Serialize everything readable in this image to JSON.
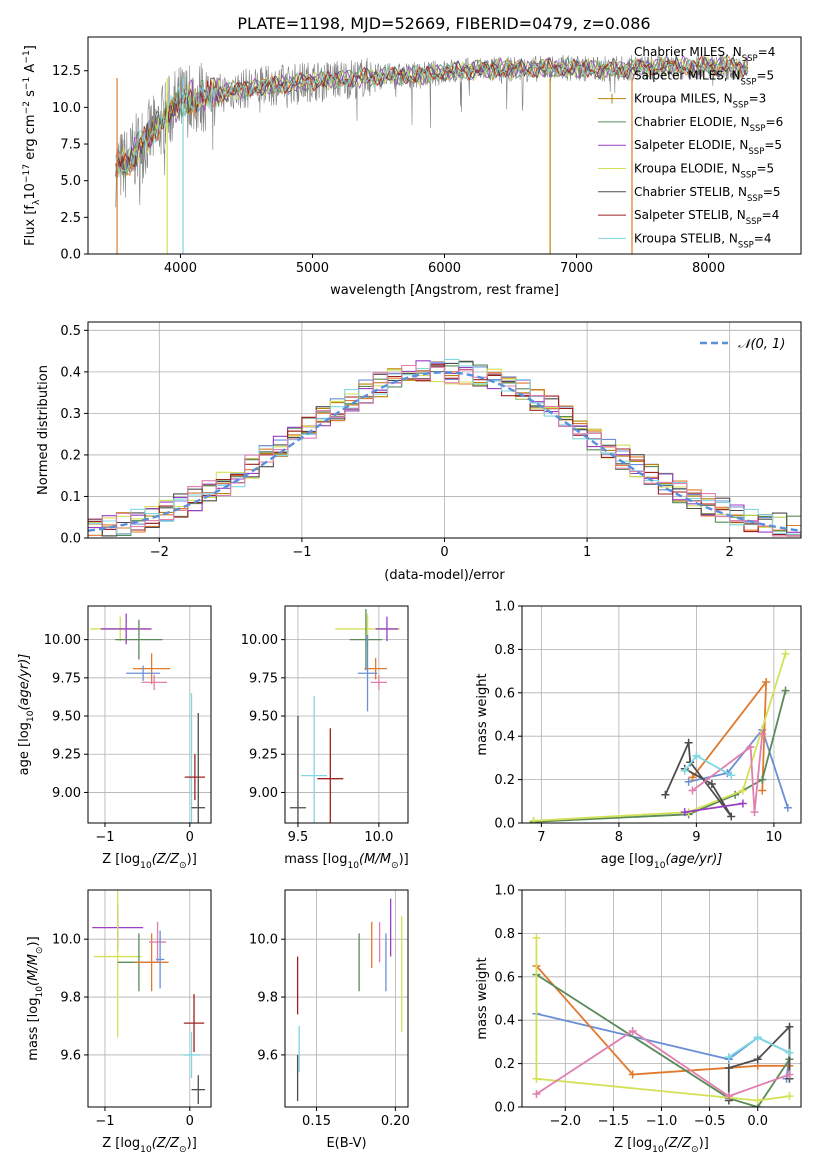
{
  "title": "PLATE=1198, MJD=52669, FIBERID=0479, z=0.086",
  "colors": {
    "chabrier_miles": "#6b8fd6",
    "salpeter_miles": "#e07a2e",
    "kroupa_miles": "#b8860b",
    "chabrier_elodie": "#5a8a5a",
    "salpeter_elodie": "#9b3fc4",
    "kroupa_elodie": "#d4e157",
    "chabrier_stelib": "#4d4d4d",
    "salpeter_stelib": "#a02020",
    "kroupa_stelib": "#7fd8e0",
    "pink": "#e07fb0",
    "gaussian": "#5a8fdc",
    "data_spectrum": "#808080"
  },
  "chart_data": [
    {
      "id": "spectrum",
      "type": "line",
      "title": "PLATE=1198, MJD=52669, FIBERID=0479, z=0.086",
      "xlabel": "wavelength [Angstrom, rest frame]",
      "ylabel_parts": [
        "Flux [f",
        "λ",
        "10",
        "−17",
        " erg cm",
        "−2",
        " s",
        "−1",
        " A",
        "−1",
        "]"
      ],
      "xlim": [
        3300,
        8700
      ],
      "ylim": [
        0,
        14.8
      ],
      "xticks": [
        4000,
        5000,
        6000,
        7000,
        8000
      ],
      "xtick_labels": [
        "4000",
        "5000",
        "6000",
        "7000",
        "8000"
      ],
      "yticks": [
        0,
        2.5,
        5,
        7.5,
        10,
        12.5
      ],
      "ytick_labels": [
        "0.0",
        "2.5",
        "5.0",
        "7.5",
        "10.0",
        "12.5"
      ],
      "continuum_x": [
        3510,
        3600,
        3700,
        3800,
        3900,
        4000,
        4200,
        4500,
        4800,
        5000,
        5200,
        5500,
        5800,
        6000,
        6300,
        6600,
        6900,
        7200,
        7500,
        7800,
        8000,
        8300
      ],
      "continuum_y": [
        5.8,
        6.2,
        7.5,
        8.3,
        9.6,
        10.4,
        10.8,
        11.3,
        11.6,
        11.8,
        11.9,
        12.1,
        12.2,
        12.4,
        12.6,
        12.6,
        12.7,
        12.6,
        12.7,
        12.8,
        12.8,
        12.7
      ],
      "spike_lines": [
        {
          "x": 3520,
          "color": "#e07a2e"
        },
        {
          "x": 3900,
          "color": "#d4e157"
        },
        {
          "x": 4020,
          "color": "#7fd8e0"
        },
        {
          "x": 6800,
          "color": "#b8860b"
        },
        {
          "x": 7420,
          "color": "#e07a2e"
        }
      ],
      "legend": [
        {
          "label": "Chabrier MILES, N",
          "sub": "SSP",
          "tail": "=4",
          "color": "#6b8fd6"
        },
        {
          "label": "Salpeter MILES, N",
          "sub": "SSP",
          "tail": "=5",
          "color": "#e07a2e"
        },
        {
          "label": "Kroupa MILES, N",
          "sub": "SSP",
          "tail": "=3",
          "color": "#b8860b"
        },
        {
          "label": "Chabrier ELODIE, N",
          "sub": "SSP",
          "tail": "=6",
          "color": "#5a8a5a"
        },
        {
          "label": "Salpeter ELODIE, N",
          "sub": "SSP",
          "tail": "=5",
          "color": "#9b3fc4"
        },
        {
          "label": "Kroupa ELODIE, N",
          "sub": "SSP",
          "tail": "=5",
          "color": "#d4e157"
        },
        {
          "label": "Chabrier STELIB, N",
          "sub": "SSP",
          "tail": "=5",
          "color": "#4d4d4d"
        },
        {
          "label": "Salpeter STELIB, N",
          "sub": "SSP",
          "tail": "=4",
          "color": "#a02020"
        },
        {
          "label": "Kroupa STELIB, N",
          "sub": "SSP",
          "tail": "=4",
          "color": "#7fd8e0"
        }
      ]
    },
    {
      "id": "residuals",
      "type": "histogram",
      "xlabel": "(data-model)/error",
      "ylabel": "Normed distribution",
      "xlim": [
        -2.5,
        2.5
      ],
      "ylim": [
        0,
        0.52
      ],
      "xticks": [
        -2,
        -1,
        0,
        1,
        2
      ],
      "xtick_labels": [
        "−2",
        "−1",
        "0",
        "1",
        "2"
      ],
      "yticks": [
        0,
        0.1,
        0.2,
        0.3,
        0.4,
        0.5
      ],
      "ytick_labels": [
        "0.0",
        "0.1",
        "0.2",
        "0.3",
        "0.4",
        "0.5"
      ],
      "bin_width": 0.1,
      "bin_start": -2.5,
      "gaussian_label": "𝒩(0, 1)",
      "base_values": [
        0.025,
        0.03,
        0.036,
        0.044,
        0.054,
        0.066,
        0.079,
        0.094,
        0.111,
        0.13,
        0.15,
        0.171,
        0.194,
        0.218,
        0.242,
        0.266,
        0.29,
        0.312,
        0.333,
        0.352,
        0.368,
        0.381,
        0.391,
        0.397,
        0.4,
        0.4,
        0.397,
        0.391,
        0.381,
        0.368,
        0.352,
        0.333,
        0.312,
        0.29,
        0.266,
        0.242,
        0.218,
        0.194,
        0.171,
        0.15,
        0.13,
        0.111,
        0.094,
        0.079,
        0.066,
        0.054,
        0.044,
        0.036,
        0.03,
        0.025
      ],
      "series_colors": [
        "#6b8fd6",
        "#e07a2e",
        "#b8860b",
        "#5a8a5a",
        "#9b3fc4",
        "#d4e157",
        "#4d4d4d",
        "#a02020",
        "#7fd8e0",
        "#e07fb0"
      ]
    },
    {
      "id": "age_vs_Z",
      "type": "errorbar",
      "xlabel_parts": [
        "Z [log",
        "10",
        "(Z/Z",
        "⊙",
        ")]"
      ],
      "ylabel_parts": [
        "age  [log",
        "10",
        "(age/yr)]"
      ],
      "xlim": [
        -1.2,
        0.25
      ],
      "ylim": [
        8.8,
        10.22
      ],
      "xticks": [
        -1,
        0
      ],
      "xtick_labels": [
        "−1",
        "0"
      ],
      "yticks": [
        9.0,
        9.25,
        9.5,
        9.75,
        10.0
      ],
      "ytick_labels": [
        "9.00",
        "9.25",
        "9.50",
        "9.75",
        "10.00"
      ],
      "points": [
        {
          "x": -0.82,
          "y": 10.07,
          "xerr": 0.35,
          "yerr": 0.08,
          "color": "#d4e157"
        },
        {
          "x": -0.75,
          "y": 10.07,
          "xerr": 0.3,
          "yerr": 0.1,
          "color": "#9b3fc4"
        },
        {
          "x": -0.6,
          "y": 10.0,
          "xerr": 0.28,
          "yerr": 0.13,
          "color": "#5a8a5a"
        },
        {
          "x": -0.45,
          "y": 9.81,
          "xerr": 0.22,
          "yerr": 0.1,
          "color": "#e07a2e"
        },
        {
          "x": -0.55,
          "y": 9.78,
          "xerr": 0.2,
          "yerr": 0.05,
          "color": "#6b8fd6"
        },
        {
          "x": -0.42,
          "y": 9.72,
          "xerr": 0.15,
          "yerr": 0.05,
          "color": "#e07fb0"
        },
        {
          "x": 0.02,
          "y": 9.1,
          "xerr": 0.01,
          "yerr": 0.55,
          "color": "#7fd8e0"
        },
        {
          "x": 0.06,
          "y": 9.1,
          "xerr": 0.12,
          "yerr": 0.15,
          "color": "#a02020"
        },
        {
          "x": 0.1,
          "y": 8.9,
          "xerr": 0.08,
          "yerr": 0.62,
          "color": "#4d4d4d"
        }
      ]
    },
    {
      "id": "age_vs_mass",
      "type": "errorbar",
      "xlabel_parts": [
        "mass [log",
        "10",
        "(M/M",
        "⊙",
        ")]"
      ],
      "xlim": [
        9.42,
        10.18
      ],
      "ylim": [
        8.8,
        10.22
      ],
      "xticks": [
        9.5,
        10.0
      ],
      "xtick_labels": [
        "9.5",
        "10.0"
      ],
      "yticks": [
        9.0,
        9.25,
        9.5,
        9.75,
        10.0
      ],
      "ytick_labels": [
        "9.00",
        "9.25",
        "9.50",
        "9.75",
        "10.00"
      ],
      "points": [
        {
          "x": 9.93,
          "y": 10.07,
          "xerr": 0.2,
          "yerr": 0.1,
          "color": "#d4e157"
        },
        {
          "x": 10.05,
          "y": 10.07,
          "xerr": 0.07,
          "yerr": 0.08,
          "color": "#9b3fc4"
        },
        {
          "x": 9.92,
          "y": 10.0,
          "xerr": 0.1,
          "yerr": 0.2,
          "color": "#5a8a5a"
        },
        {
          "x": 9.98,
          "y": 9.81,
          "xerr": 0.07,
          "yerr": 0.07,
          "color": "#e07a2e"
        },
        {
          "x": 9.93,
          "y": 9.78,
          "xerr": 0.06,
          "yerr": 0.25,
          "color": "#6b8fd6"
        },
        {
          "x": 10.0,
          "y": 9.72,
          "xerr": 0.05,
          "yerr": 0.05,
          "color": "#e07fb0"
        },
        {
          "x": 9.6,
          "y": 9.11,
          "xerr": 0.08,
          "yerr": 0.52,
          "color": "#7fd8e0"
        },
        {
          "x": 9.7,
          "y": 9.09,
          "xerr": 0.08,
          "yerr": 0.33,
          "color": "#a02020"
        },
        {
          "x": 9.5,
          "y": 8.9,
          "xerr": 0.05,
          "yerr": 0.6,
          "color": "#4d4d4d"
        }
      ]
    },
    {
      "id": "weight_vs_age",
      "type": "line",
      "xlabel_parts": [
        "age  [log",
        "10",
        "(age/yr)]"
      ],
      "ylabel": "mass weight",
      "xlim": [
        6.75,
        10.35
      ],
      "ylim": [
        0,
        1
      ],
      "xticks": [
        7,
        8,
        9,
        10
      ],
      "xtick_labels": [
        "7",
        "8",
        "9",
        "10"
      ],
      "yticks": [
        0,
        0.2,
        0.4,
        0.6,
        0.8,
        1.0
      ],
      "ytick_labels": [
        "0.0",
        "0.2",
        "0.4",
        "0.6",
        "0.8",
        "1.0"
      ],
      "series": [
        {
          "name": "Chabrier MILES",
          "color": "#6b8fd6",
          "x": [
            8.9,
            9.4,
            9.85,
            10.18
          ],
          "y": [
            0.19,
            0.23,
            0.43,
            0.07
          ]
        },
        {
          "name": "Salpeter MILES",
          "color": "#e07a2e",
          "x": [
            8.95,
            9.9,
            9.85
          ],
          "y": [
            0.21,
            0.65,
            0.15
          ]
        },
        {
          "name": "Chabrier ELODIE",
          "color": "#5a8a5a",
          "x": [
            6.9,
            8.9,
            9.5,
            9.85,
            10.15
          ],
          "y": [
            0.005,
            0.04,
            0.13,
            0.2,
            0.61
          ]
        },
        {
          "name": "Kroupa ELODIE",
          "color": "#d4e157",
          "x": [
            6.9,
            8.9,
            9.6,
            10.15
          ],
          "y": [
            0.01,
            0.05,
            0.15,
            0.78
          ]
        },
        {
          "name": "Chabrier STELIB",
          "color": "#4d4d4d",
          "x": [
            8.6,
            8.9,
            8.92,
            9.45,
            9.2,
            8.85
          ],
          "y": [
            0.13,
            0.37,
            0.28,
            0.03,
            0.18,
            0.25
          ]
        },
        {
          "name": "Pink",
          "color": "#e07fb0",
          "x": [
            8.95,
            9.7,
            9.75,
            9.85
          ],
          "y": [
            0.15,
            0.35,
            0.05,
            0.41
          ]
        },
        {
          "name": "Salpeter ELODIE",
          "color": "#9b3fc4",
          "x": [
            8.85,
            9.6
          ],
          "y": [
            0.05,
            0.09
          ]
        },
        {
          "name": "Kroupa STELIB",
          "color": "#7fd8e0",
          "x": [
            8.85,
            9.0,
            9.45
          ],
          "y": [
            0.24,
            0.31,
            0.22
          ]
        }
      ]
    },
    {
      "id": "mass_vs_Z",
      "type": "errorbar",
      "xlabel_parts": [
        "Z [log",
        "10",
        "(Z/Z",
        "⊙",
        ")]"
      ],
      "ylabel_parts": [
        "mass [log",
        "10",
        "(M/M",
        "⊙",
        ")]"
      ],
      "xlim": [
        -1.2,
        0.25
      ],
      "ylim": [
        9.42,
        10.17
      ],
      "xticks": [
        -1,
        0
      ],
      "xtick_labels": [
        "−1",
        "0"
      ],
      "yticks": [
        9.6,
        9.8,
        10.0
      ],
      "ytick_labels": [
        "9.6",
        "9.8",
        "10.0"
      ],
      "points": [
        {
          "x": -0.85,
          "y": 10.04,
          "xerr": 0.3,
          "yerr": 0.08,
          "color": "#9b3fc4"
        },
        {
          "x": -0.85,
          "y": 9.94,
          "xerr": 0.28,
          "yerr": 0.28,
          "color": "#d4e157"
        },
        {
          "x": -0.6,
          "y": 9.92,
          "xerr": 0.25,
          "yerr": 0.1,
          "color": "#5a8a5a"
        },
        {
          "x": -0.45,
          "y": 9.92,
          "xerr": 0.2,
          "yerr": 0.1,
          "color": "#e07a2e"
        },
        {
          "x": -0.38,
          "y": 9.99,
          "xerr": 0.1,
          "yerr": 0.07,
          "color": "#e07fb0"
        },
        {
          "x": -0.35,
          "y": 9.93,
          "xerr": 0.05,
          "yerr": 0.1,
          "color": "#6b8fd6"
        },
        {
          "x": 0.05,
          "y": 9.71,
          "xerr": 0.12,
          "yerr": 0.1,
          "color": "#a02020"
        },
        {
          "x": 0.02,
          "y": 9.6,
          "xerr": 0.1,
          "yerr": 0.08,
          "color": "#7fd8e0"
        },
        {
          "x": 0.1,
          "y": 9.48,
          "xerr": 0.08,
          "yerr": 0.05,
          "color": "#4d4d4d"
        }
      ]
    },
    {
      "id": "mass_vs_ebv",
      "type": "errorbar",
      "xlabel": "E(B-V)",
      "xlim": [
        0.13,
        0.208
      ],
      "ylim": [
        9.42,
        10.17
      ],
      "xticks": [
        0.15,
        0.2
      ],
      "xtick_labels": [
        "0.15",
        "0.20"
      ],
      "yticks": [
        9.6,
        9.8,
        10.0
      ],
      "ytick_labels": [
        "9.6",
        "9.8",
        "10.0"
      ],
      "points": [
        {
          "x": 0.138,
          "y": 9.84,
          "xerr": 0,
          "yerr": 0.1,
          "color": "#a02020"
        },
        {
          "x": 0.138,
          "y": 9.52,
          "xerr": 0,
          "yerr": 0.08,
          "color": "#4d4d4d"
        },
        {
          "x": 0.139,
          "y": 9.62,
          "xerr": 0,
          "yerr": 0.08,
          "color": "#7fd8e0"
        },
        {
          "x": 0.177,
          "y": 9.92,
          "xerr": 0,
          "yerr": 0.1,
          "color": "#5a8a5a"
        },
        {
          "x": 0.185,
          "y": 9.98,
          "xerr": 0,
          "yerr": 0.08,
          "color": "#e07a2e"
        },
        {
          "x": 0.19,
          "y": 9.99,
          "xerr": 0,
          "yerr": 0.07,
          "color": "#e07fb0"
        },
        {
          "x": 0.194,
          "y": 9.92,
          "xerr": 0,
          "yerr": 0.1,
          "color": "#6b8fd6"
        },
        {
          "x": 0.197,
          "y": 10.04,
          "xerr": 0,
          "yerr": 0.1,
          "color": "#9b3fc4"
        },
        {
          "x": 0.204,
          "y": 9.88,
          "xerr": 0,
          "yerr": 0.2,
          "color": "#d4e157"
        }
      ]
    },
    {
      "id": "weight_vs_Z",
      "type": "line",
      "xlabel_parts": [
        "Z [log",
        "10",
        "(Z/Z",
        "⊙",
        ")]"
      ],
      "ylabel": "mass weight",
      "xlim": [
        -2.45,
        0.45
      ],
      "ylim": [
        0,
        1
      ],
      "xticks": [
        -2.0,
        -1.5,
        -1.0,
        -0.5,
        0.0
      ],
      "xtick_labels": [
        "−2.0",
        "−1.5",
        "−1.0",
        "−0.5",
        "0.0"
      ],
      "yticks": [
        0,
        0.2,
        0.4,
        0.6,
        0.8,
        1.0
      ],
      "ytick_labels": [
        "0.0",
        "0.2",
        "0.4",
        "0.6",
        "0.8",
        "1.0"
      ],
      "series": [
        {
          "name": "Chabrier MILES",
          "color": "#6b8fd6",
          "x": [
            -2.3,
            -0.3,
            0.0,
            0.33,
            0.3
          ],
          "y": [
            0.43,
            0.22,
            0.32,
            0.25,
            0.13
          ]
        },
        {
          "name": "Salpeter MILES",
          "color": "#e07a2e",
          "x": [
            -2.3,
            -1.3,
            0.0,
            0.33
          ],
          "y": [
            0.65,
            0.15,
            0.19,
            0.19
          ]
        },
        {
          "name": "Chabrier ELODIE",
          "color": "#5a8a5a",
          "x": [
            -2.3,
            -0.3,
            0.0,
            0.33
          ],
          "y": [
            0.61,
            0.04,
            0.0,
            0.22
          ]
        },
        {
          "name": "Kroupa ELODIE",
          "color": "#d4e157",
          "x": [
            -2.3,
            -2.3,
            0.0,
            0.33
          ],
          "y": [
            0.78,
            0.13,
            0.03,
            0.05
          ]
        },
        {
          "name": "Chabrier STELIB",
          "color": "#4d4d4d",
          "x": [
            -0.3,
            -0.3,
            0.0,
            0.33,
            0.33
          ],
          "y": [
            0.03,
            0.18,
            0.22,
            0.37,
            0.13
          ]
        },
        {
          "name": "Pink",
          "color": "#e07fb0",
          "x": [
            -2.3,
            -1.3,
            -0.3,
            0.33
          ],
          "y": [
            0.06,
            0.35,
            0.05,
            0.15
          ]
        },
        {
          "name": "Kroupa STELIB",
          "color": "#7fd8e0",
          "x": [
            -0.3,
            0.0,
            0.33
          ],
          "y": [
            0.23,
            0.32,
            0.25
          ]
        }
      ]
    }
  ]
}
